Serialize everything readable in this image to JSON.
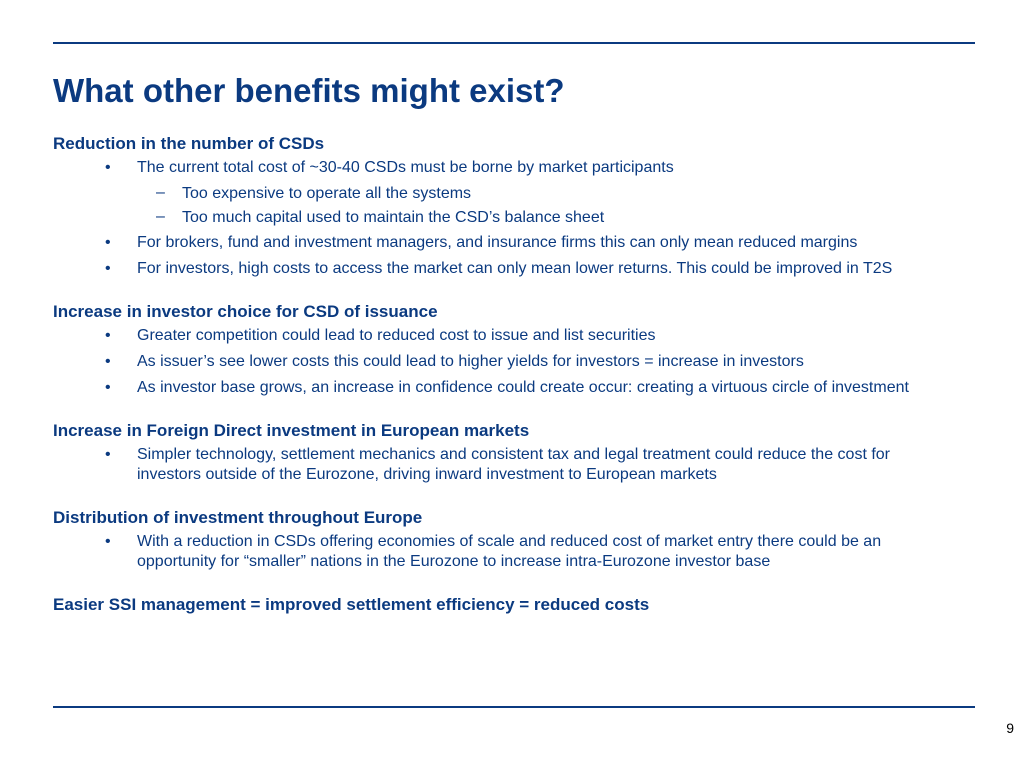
{
  "slide": {
    "title": "What other benefits might exist?",
    "page_number": "9"
  },
  "sections": [
    {
      "heading": "Reduction in the number of CSDs",
      "bullets": [
        "The current total cost of ~30-40 CSDs must be borne by market participants",
        "For brokers, fund and investment managers, and insurance firms this can only mean reduced margins",
        "For investors, high costs to access the market can only mean lower returns. This could be improved in T2S"
      ],
      "sub_bullets": [
        "Too expensive to operate all the systems",
        "Too much capital used to maintain the CSD’s balance sheet"
      ]
    },
    {
      "heading": "Increase in investor choice for CSD of issuance",
      "bullets": [
        "Greater competition could lead to reduced cost to issue and list securities",
        "As issuer’s see lower costs this could lead to higher yields for investors = increase in investors",
        "As investor base grows, an increase in confidence could create occur: creating a virtuous circle of investment"
      ]
    },
    {
      "heading": "Increase in Foreign Direct investment in European markets",
      "bullets": [
        "Simpler technology, settlement mechanics and consistent tax and legal treatment could reduce the cost for investors outside of the Eurozone, driving inward investment to European markets"
      ]
    },
    {
      "heading": "Distribution of investment throughout Europe",
      "bullets": [
        "With a reduction in CSDs offering economies of scale and reduced cost of market entry there could be an opportunity for “smaller” nations in the Eurozone to increase intra-Eurozone investor base"
      ]
    },
    {
      "heading": "Easier SSI management = improved settlement efficiency = reduced costs",
      "bullets": []
    }
  ],
  "symbols": {
    "bullet": "•",
    "dash": "–"
  },
  "colors": {
    "text": "#0b3a80",
    "rule": "#0b3a80",
    "page_number": "#000000"
  }
}
